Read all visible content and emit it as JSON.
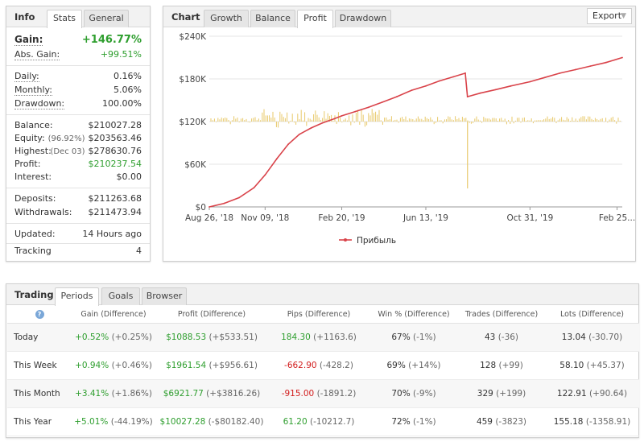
{
  "info": {
    "title": "Info",
    "tabs": [
      "Stats",
      "General"
    ],
    "gain_label": "Gain:",
    "gain": "+146.77%",
    "abs_gain_label": "Abs. Gain:",
    "abs_gain": "+99.51%",
    "daily_label": "Daily:",
    "daily": "0.16%",
    "monthly_label": "Monthly:",
    "monthly": "5.06%",
    "drawdown_label": "Drawdown:",
    "drawdown": "100.00%",
    "balance_label": "Balance:",
    "balance": "$210027.28",
    "equity_label": "Equity:",
    "equity_pct": "(96.92%)",
    "equity": "$203563.46",
    "highest_label": "Highest:",
    "highest_date": "(Dec 03)",
    "highest": "$278630.76",
    "profit_label": "Profit:",
    "profit": "$210237.54",
    "interest_label": "Interest:",
    "interest": "$0.00",
    "deposits_label": "Deposits:",
    "deposits": "$211263.68",
    "withdrawals_label": "Withdrawals:",
    "withdrawals": "$211473.94",
    "updated_label": "Updated:",
    "updated": "14 Hours ago",
    "tracking_label": "Tracking",
    "tracking": "4"
  },
  "chart_panel": {
    "title": "Chart",
    "tabs": [
      "Growth",
      "Balance",
      "Profit",
      "Drawdown"
    ],
    "active_tab": "Profit",
    "export_label": "Export"
  },
  "chart_data": {
    "type": "line",
    "title": "",
    "xlabel": "",
    "ylabel": "",
    "ylim": [
      0,
      240000
    ],
    "y_ticks": [
      "$0",
      "$60K",
      "$120K",
      "$180K",
      "$240K"
    ],
    "y_tick_values": [
      0,
      60000,
      120000,
      180000,
      240000
    ],
    "x_ticks": [
      "Aug 26, '18",
      "Nov 09, '18",
      "Feb 20, '19",
      "Jun 13, '19",
      "Oct 31, '19",
      "Feb 25..."
    ],
    "x_tick_dates": [
      "2018-08-26",
      "2018-11-09",
      "2019-02-20",
      "2019-06-13",
      "2019-10-31",
      "2020-02-25"
    ],
    "xlim": [
      "2018-08-26",
      "2020-03-03"
    ],
    "grid": "horizontal",
    "legend_position": "bottom-center",
    "colors": {
      "line": "#d9434a",
      "bars": "#e8c96a",
      "grid": "#e6e6e6"
    },
    "series": [
      {
        "name": "Прибыль",
        "x": [
          "2018-08-26",
          "2018-09-15",
          "2018-10-05",
          "2018-10-25",
          "2018-11-09",
          "2018-11-25",
          "2018-12-10",
          "2018-12-25",
          "2019-01-10",
          "2019-01-25",
          "2019-02-10",
          "2019-02-20",
          "2019-03-10",
          "2019-03-28",
          "2019-04-15",
          "2019-05-05",
          "2019-05-25",
          "2019-06-13",
          "2019-07-01",
          "2019-07-20",
          "2019-08-05",
          "2019-08-08",
          "2019-08-25",
          "2019-09-15",
          "2019-10-05",
          "2019-10-31",
          "2019-11-20",
          "2019-12-10",
          "2019-12-31",
          "2020-01-20",
          "2020-02-10",
          "2020-03-03"
        ],
        "y": [
          0,
          5000,
          13000,
          27000,
          45000,
          68000,
          88000,
          102000,
          111000,
          118000,
          124000,
          128000,
          134000,
          140000,
          147000,
          155000,
          164000,
          170000,
          177000,
          183000,
          188000,
          155000,
          160000,
          165000,
          170000,
          176000,
          182000,
          188000,
          193000,
          198000,
          203000,
          210000
        ]
      },
      {
        "name": "daily",
        "type": "bar",
        "baseline": 120000,
        "note_values": "daily result bars around baseline, one large negative spike",
        "spike_date": "2019-08-08",
        "spike_value": -94000
      }
    ]
  },
  "trading": {
    "title": "Trading",
    "tabs": [
      "Periods",
      "Goals",
      "Browser"
    ],
    "help_icon": "?",
    "headers": [
      "Gain (Difference)",
      "Profit (Difference)",
      "Pips (Difference)",
      "Win % (Difference)",
      "Trades (Difference)",
      "Lots (Difference)"
    ],
    "rows": [
      {
        "label": "Today",
        "gain": "+0.52%",
        "gain_diff": "(+0.25%)",
        "profit": "$1088.53",
        "profit_diff": "(+$533.51)",
        "pips": "184.30",
        "pips_diff": "(+1163.6)",
        "pips_neg": false,
        "win": "67%",
        "win_diff": "(-1%)",
        "trades": "43",
        "trades_diff": "(-36)",
        "lots": "13.04",
        "lots_diff": "(-30.70)"
      },
      {
        "label": "This Week",
        "gain": "+0.94%",
        "gain_diff": "(+0.46%)",
        "profit": "$1961.54",
        "profit_diff": "(+$956.61)",
        "pips": "-662.90",
        "pips_diff": "(-428.2)",
        "pips_neg": true,
        "win": "69%",
        "win_diff": "(+14%)",
        "trades": "128",
        "trades_diff": "(+99)",
        "lots": "58.10",
        "lots_diff": "(+45.37)"
      },
      {
        "label": "This Month",
        "gain": "+3.41%",
        "gain_diff": "(+1.86%)",
        "profit": "$6921.77",
        "profit_diff": "(+$3816.26)",
        "pips": "-915.00",
        "pips_diff": "(-1891.2)",
        "pips_neg": true,
        "win": "70%",
        "win_diff": "(-9%)",
        "trades": "329",
        "trades_diff": "(+199)",
        "lots": "122.91",
        "lots_diff": "(+90.64)"
      },
      {
        "label": "This Year",
        "gain": "+5.01%",
        "gain_diff": "(-44.19%)",
        "profit": "$10027.28",
        "profit_diff": "(-$80182.40)",
        "pips": "61.20",
        "pips_diff": "(-10212.7)",
        "pips_neg": false,
        "win": "72%",
        "win_diff": "(-1%)",
        "trades": "459",
        "trades_diff": "(-3823)",
        "lots": "155.18",
        "lots_diff": "(-1358.91)"
      }
    ]
  }
}
